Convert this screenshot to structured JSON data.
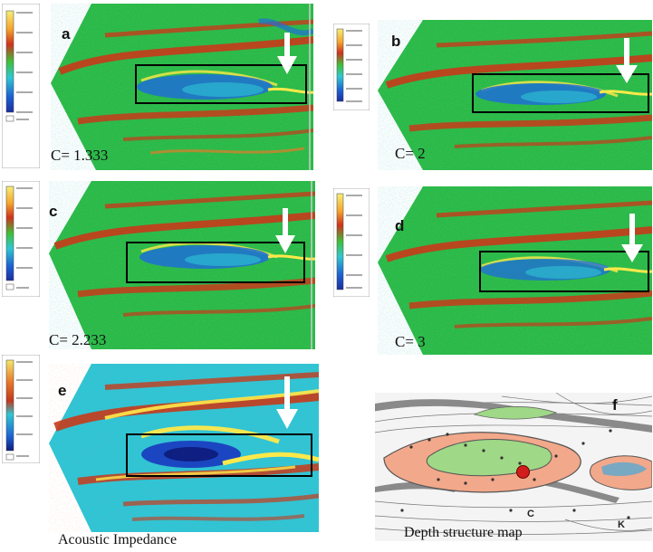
{
  "panels": [
    {
      "letter": "a",
      "cval": "C= 1.333"
    },
    {
      "letter": "b",
      "cval": "C= 2"
    },
    {
      "letter": "c",
      "cval": "C= 2.233"
    },
    {
      "letter": "d",
      "cval": "C= 3"
    },
    {
      "letter": "e",
      "caption": "Acoustic Impedance"
    },
    {
      "letter": "f",
      "caption": "Depth structure map"
    }
  ],
  "colors": {
    "background": "#22b53f",
    "high": "#c83a1a",
    "peak": "#ffe94a",
    "low": "#1f6fd6",
    "mid": "#2ec5d6",
    "box": "#000000",
    "arrow": "#ffffff",
    "map_green": "#9fd887",
    "map_salmon": "#f2a88a",
    "map_grey": "#8a8a8a"
  },
  "map": {
    "labels": [
      "C",
      "K"
    ]
  },
  "icons": [
    "down-arrow-icon",
    "well-location-icon"
  ]
}
